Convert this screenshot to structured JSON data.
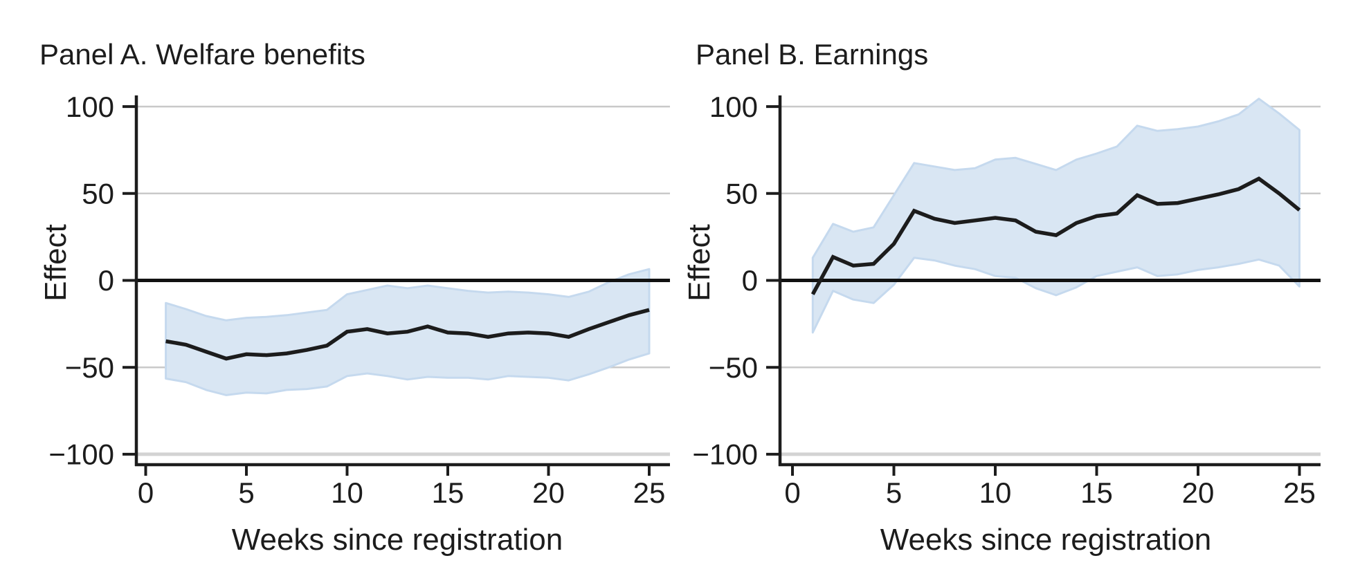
{
  "figure": {
    "background": "#ffffff",
    "description": "Two-panel line chart with confidence bands"
  },
  "colors": {
    "band_fill": "#d9e6f3",
    "band_edge": "#c5d9ee",
    "line": "#1c1c1c",
    "zero_line": "#111111",
    "axis": "#1c1c1c",
    "gridline": "#c9c9c9",
    "gridline_heavy": "#d3d3d3",
    "text": "#1c1c1c"
  },
  "chart_data": [
    {
      "type": "line",
      "title": "Panel A. Welfare benefits",
      "xlabel": "Weeks since registration",
      "ylabel": "Effect",
      "x_ticks": [
        0,
        5,
        10,
        15,
        20,
        25
      ],
      "y_ticks": [
        100,
        50,
        0,
        -50,
        -100
      ],
      "xlim": [
        0,
        26
      ],
      "ylim": [
        -100,
        100
      ],
      "grid": true,
      "zero_line": true,
      "legend": "none",
      "x": [
        1,
        2,
        3,
        4,
        5,
        6,
        7,
        8,
        9,
        10,
        11,
        12,
        13,
        14,
        15,
        16,
        17,
        18,
        19,
        20,
        21,
        22,
        23,
        24,
        25
      ],
      "series": [
        {
          "name": "effect",
          "values": [
            -35,
            -37,
            -41,
            -45,
            -42.5,
            -43,
            -42,
            -40,
            -37.5,
            -29.5,
            -28,
            -30.5,
            -29.5,
            -26.5,
            -30,
            -30.5,
            -32.5,
            -30.5,
            -30,
            -30.5,
            -32.5,
            -28,
            -24,
            -20,
            -17
          ]
        },
        {
          "name": "ci_upper",
          "values": [
            -13,
            -16.5,
            -20.5,
            -23,
            -21.5,
            -21,
            -20,
            -18.5,
            -17,
            -8,
            -5.5,
            -3,
            -4.5,
            -3,
            -4.5,
            -6,
            -7,
            -6.5,
            -7,
            -8,
            -9.5,
            -6.5,
            -1,
            3.5,
            6.5
          ]
        },
        {
          "name": "ci_lower",
          "values": [
            -56.5,
            -58.5,
            -63,
            -66,
            -64.5,
            -65,
            -63,
            -62.5,
            -61,
            -55,
            -53.5,
            -55,
            -57,
            -55.5,
            -56,
            -56,
            -57,
            -55,
            -55.5,
            -56,
            -57.5,
            -54,
            -50,
            -45.5,
            -42
          ]
        }
      ]
    },
    {
      "type": "line",
      "title": "Panel B. Earnings",
      "xlabel": "Weeks since registration",
      "ylabel": "Effect",
      "x_ticks": [
        0,
        5,
        10,
        15,
        20,
        25
      ],
      "y_ticks": [
        100,
        50,
        0,
        -50,
        -100
      ],
      "xlim": [
        0,
        26
      ],
      "ylim": [
        -100,
        100
      ],
      "grid": true,
      "zero_line": true,
      "legend": "none",
      "x": [
        1,
        2,
        3,
        4,
        5,
        6,
        7,
        8,
        9,
        10,
        11,
        12,
        13,
        14,
        15,
        16,
        17,
        18,
        19,
        20,
        21,
        22,
        23,
        24,
        25
      ],
      "series": [
        {
          "name": "effect",
          "values": [
            -8,
            13.5,
            8.5,
            9.5,
            21,
            40,
            35.5,
            33,
            34.5,
            36,
            34.5,
            28,
            26,
            33,
            37,
            38.5,
            49,
            44,
            44.5,
            47,
            49.5,
            52.5,
            58.5,
            50,
            40.5
          ]
        },
        {
          "name": "ci_upper",
          "values": [
            13,
            32.5,
            28,
            30.5,
            49,
            67.5,
            65.5,
            63.5,
            64.5,
            69.5,
            70.5,
            67,
            63.5,
            69.5,
            73,
            77,
            89,
            86,
            87,
            88.5,
            91.5,
            95.5,
            104.5,
            96,
            86.5
          ]
        },
        {
          "name": "ci_lower",
          "values": [
            -30,
            -6,
            -11,
            -13,
            -2.5,
            13,
            11.5,
            8.5,
            6.5,
            2.5,
            1.5,
            -4.5,
            -8.5,
            -4,
            2.5,
            5,
            7.5,
            2.5,
            3.5,
            6,
            7.5,
            9.5,
            12,
            8.5,
            -3.5
          ]
        }
      ]
    }
  ]
}
